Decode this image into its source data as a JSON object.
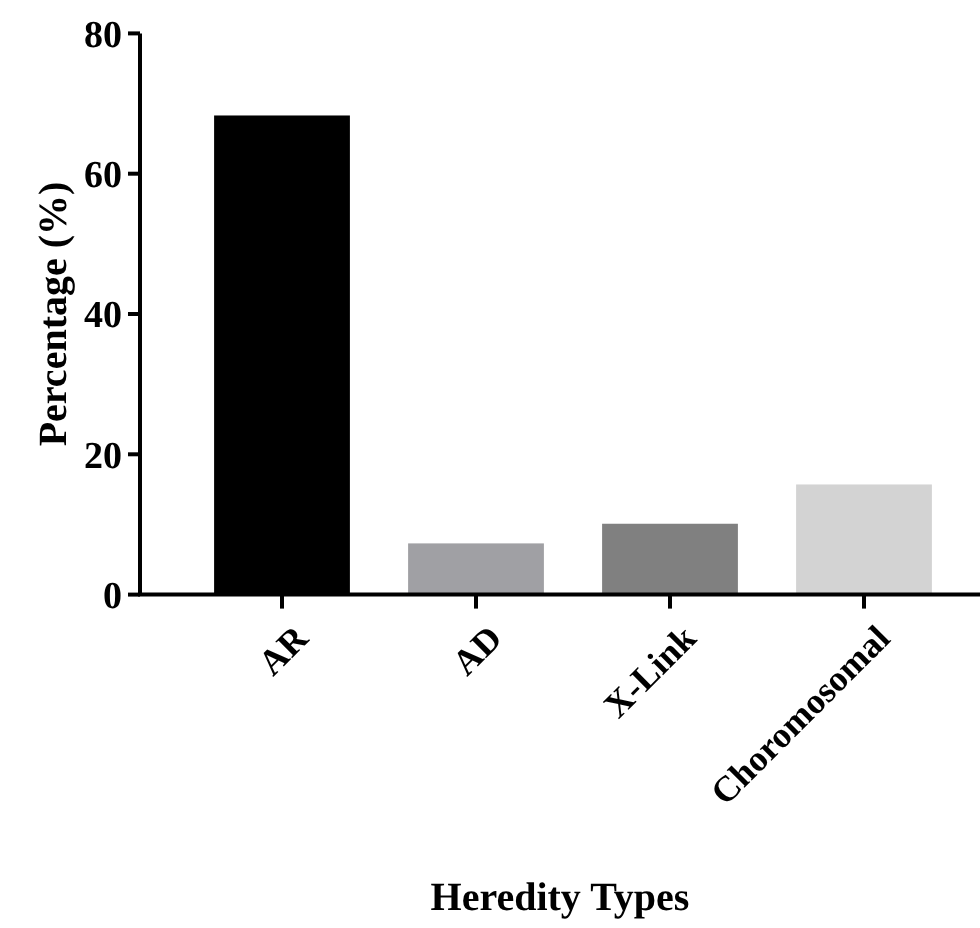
{
  "chart_data": {
    "type": "bar",
    "xlabel": "Heredity Types",
    "ylabel": "Percentage (%)",
    "categories": [
      "AR",
      "AD",
      "X-Link",
      "Choromosomal"
    ],
    "values": [
      68.3,
      7.3,
      10.1,
      15.7
    ],
    "colors": [
      "#000000",
      "#a0a0a4",
      "#808080",
      "#d3d3d3"
    ],
    "ylim": [
      0,
      80
    ],
    "yticks": [
      0,
      20,
      40,
      60,
      80
    ],
    "grid": false
  }
}
